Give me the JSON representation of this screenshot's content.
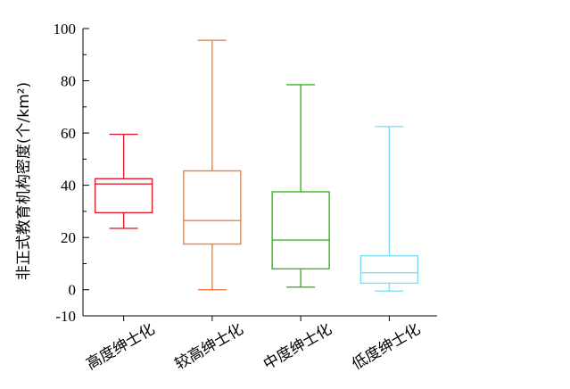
{
  "chart_data": {
    "type": "box",
    "ylabel": "非正式教育机构密度(个/km²)",
    "xlabel": "",
    "ylim": [
      -10,
      100
    ],
    "yticks": [
      -10,
      0,
      20,
      40,
      60,
      80,
      100
    ],
    "categories": [
      "高度绅士化",
      "较高绅士化",
      "中度绅士化",
      "低度绅士化"
    ],
    "series": [
      {
        "category": "高度绅士化",
        "color": "#e0202a",
        "whisker_low": 23.5,
        "q1": 29.5,
        "median": 40.5,
        "q3": 42.5,
        "whisker_high": 59.5
      },
      {
        "category": "较高绅士化",
        "color": "#f07f3c",
        "whisker_low": 0,
        "q1": 17.5,
        "median": 26.5,
        "q3": 45.5,
        "whisker_high": 95.5
      },
      {
        "category": "中度绅士化",
        "color": "#3cb521",
        "whisker_low": 1,
        "q1": 8,
        "median": 19,
        "q3": 37.5,
        "whisker_high": 78.5
      },
      {
        "category": "低度绅士化",
        "color": "#7fdff0",
        "whisker_low": -0.5,
        "q1": 2.5,
        "median": 6.5,
        "q3": 13,
        "whisker_high": 62.5
      }
    ],
    "grid": false,
    "legend": "none"
  }
}
